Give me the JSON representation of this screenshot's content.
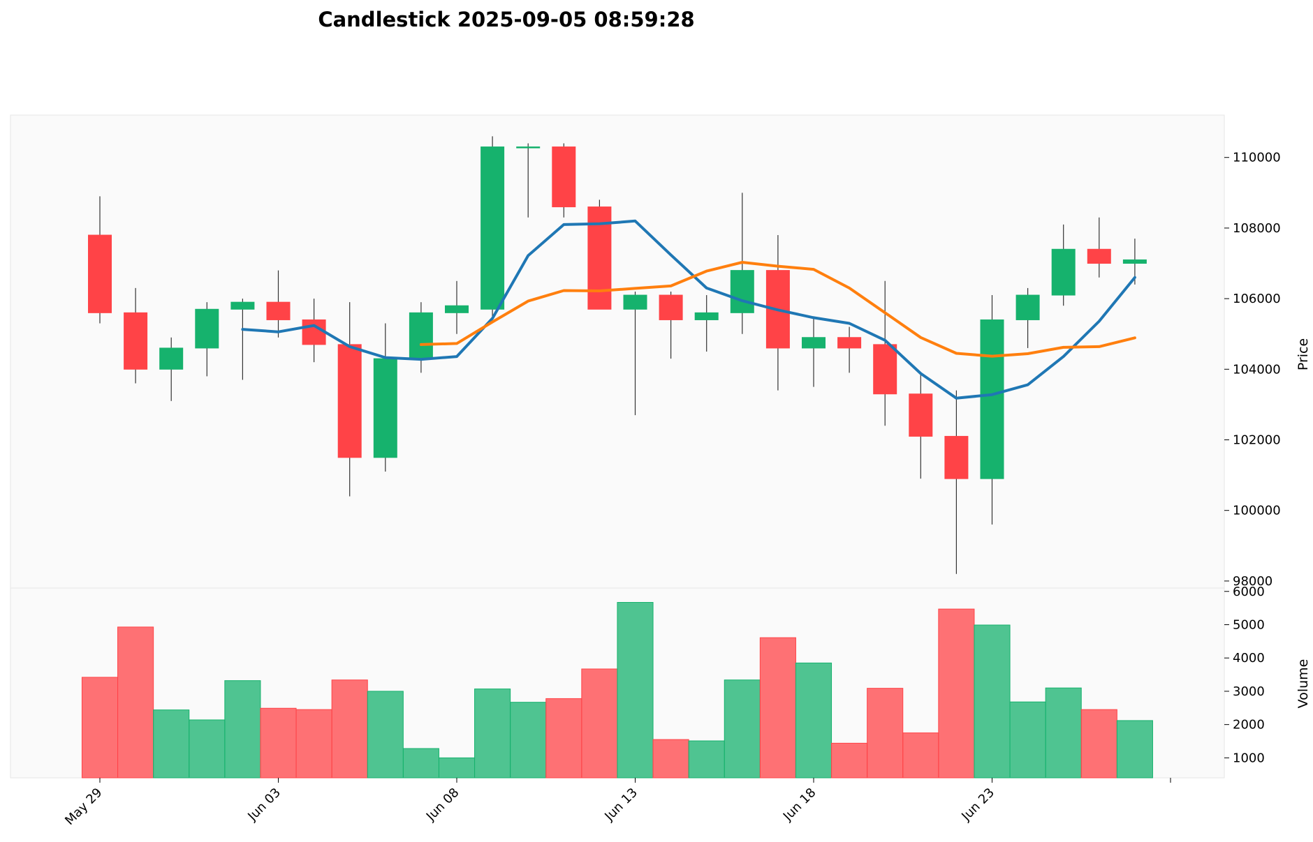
{
  "chart_data": {
    "type": "candlestick",
    "title": "Candlestick 2025-09-05 08:59:28",
    "price_ylabel": "Price",
    "volume_ylabel": "Volume",
    "price_ylim": [
      97800,
      111200
    ],
    "volume_ylim": [
      400,
      6100
    ],
    "price_ticks": [
      98000,
      100000,
      102000,
      104000,
      106000,
      108000,
      110000
    ],
    "volume_ticks": [
      1000,
      2000,
      3000,
      4000,
      5000,
      6000
    ],
    "x_tick_labels": [
      {
        "index": 0,
        "label": "May 29"
      },
      {
        "index": 5,
        "label": "Jun 03"
      },
      {
        "index": 10,
        "label": "Jun 08"
      },
      {
        "index": 15,
        "label": "Jun 13"
      },
      {
        "index": 20,
        "label": "Jun 18"
      },
      {
        "index": 25,
        "label": "Jun 23"
      },
      {
        "index": 30,
        "label": ""
      }
    ],
    "up_color": "#16b26d",
    "down_color": "#ff4347",
    "ma_colors": [
      "#1f77b4",
      "#ff7f0e"
    ],
    "candles": [
      {
        "date": "2025-05-29",
        "open": 107800,
        "high": 108900,
        "low": 105300,
        "close": 105600,
        "volume": 3420
      },
      {
        "date": "2025-05-30",
        "open": 105600,
        "high": 106300,
        "low": 103600,
        "close": 104000,
        "volume": 4930
      },
      {
        "date": "2025-05-31",
        "open": 104000,
        "high": 104900,
        "low": 103100,
        "close": 104600,
        "volume": 2440
      },
      {
        "date": "2025-06-01",
        "open": 104600,
        "high": 105900,
        "low": 103800,
        "close": 105700,
        "volume": 2140
      },
      {
        "date": "2025-06-02",
        "open": 105700,
        "high": 106000,
        "low": 103700,
        "close": 105900,
        "volume": 3320
      },
      {
        "date": "2025-06-03",
        "open": 105900,
        "high": 106800,
        "low": 104900,
        "close": 105400,
        "volume": 2490
      },
      {
        "date": "2025-06-04",
        "open": 105400,
        "high": 106000,
        "low": 104200,
        "close": 104700,
        "volume": 2450
      },
      {
        "date": "2025-06-05",
        "open": 104700,
        "high": 105900,
        "low": 100400,
        "close": 101500,
        "volume": 3340
      },
      {
        "date": "2025-06-06",
        "open": 101500,
        "high": 105300,
        "low": 101100,
        "close": 104300,
        "volume": 3000
      },
      {
        "date": "2025-06-07",
        "open": 104300,
        "high": 105900,
        "low": 103900,
        "close": 105600,
        "volume": 1280
      },
      {
        "date": "2025-06-08",
        "open": 105600,
        "high": 106500,
        "low": 105000,
        "close": 105800,
        "volume": 1000
      },
      {
        "date": "2025-06-09",
        "open": 105700,
        "high": 110600,
        "low": 105500,
        "close": 110300,
        "volume": 3070
      },
      {
        "date": "2025-06-10",
        "open": 110300,
        "high": 110400,
        "low": 108300,
        "close": 110300,
        "volume": 2670
      },
      {
        "date": "2025-06-11",
        "open": 110300,
        "high": 110400,
        "low": 108300,
        "close": 108600,
        "volume": 2780
      },
      {
        "date": "2025-06-12",
        "open": 108600,
        "high": 108800,
        "low": 105700,
        "close": 105700,
        "volume": 3670
      },
      {
        "date": "2025-06-13",
        "open": 105700,
        "high": 106200,
        "low": 102700,
        "close": 106100,
        "volume": 5670
      },
      {
        "date": "2025-06-14",
        "open": 106100,
        "high": 106200,
        "low": 104300,
        "close": 105400,
        "volume": 1550
      },
      {
        "date": "2025-06-15",
        "open": 105400,
        "high": 106100,
        "low": 104500,
        "close": 105600,
        "volume": 1510
      },
      {
        "date": "2025-06-16",
        "open": 105600,
        "high": 109000,
        "low": 105000,
        "close": 106800,
        "volume": 3340
      },
      {
        "date": "2025-06-17",
        "open": 106800,
        "high": 107800,
        "low": 103400,
        "close": 104600,
        "volume": 4610
      },
      {
        "date": "2025-06-18",
        "open": 104600,
        "high": 105500,
        "low": 103500,
        "close": 104900,
        "volume": 3850
      },
      {
        "date": "2025-06-19",
        "open": 104900,
        "high": 105200,
        "low": 103900,
        "close": 104600,
        "volume": 1440
      },
      {
        "date": "2025-06-20",
        "open": 104700,
        "high": 106500,
        "low": 102400,
        "close": 103300,
        "volume": 3090
      },
      {
        "date": "2025-06-21",
        "open": 103300,
        "high": 103900,
        "low": 100900,
        "close": 102100,
        "volume": 1750
      },
      {
        "date": "2025-06-22",
        "open": 102100,
        "high": 103400,
        "low": 98200,
        "close": 100900,
        "volume": 5470
      },
      {
        "date": "2025-06-23",
        "open": 100900,
        "high": 106100,
        "low": 99600,
        "close": 105400,
        "volume": 4990
      },
      {
        "date": "2025-06-24",
        "open": 105400,
        "high": 106300,
        "low": 104600,
        "close": 106100,
        "volume": 2680
      },
      {
        "date": "2025-06-25",
        "open": 106100,
        "high": 108100,
        "low": 105800,
        "close": 107400,
        "volume": 3100
      },
      {
        "date": "2025-06-26",
        "open": 107400,
        "high": 108300,
        "low": 106600,
        "close": 107000,
        "volume": 2450
      },
      {
        "date": "2025-06-27",
        "open": 107000,
        "high": 107700,
        "low": 106400,
        "close": 107100,
        "volume": 2120
      }
    ],
    "moving_averages": [
      {
        "values": [
          null,
          null,
          null,
          null,
          105130,
          105060,
          105240,
          104640,
          104330,
          104280,
          104360,
          105440,
          107220,
          108100,
          108120,
          108200,
          107240,
          106300,
          105940,
          105680,
          105460,
          105300,
          104820,
          103880,
          103180,
          103280,
          103560,
          104360,
          105360,
          106600
        ]
      },
      {
        "values": [
          null,
          null,
          null,
          null,
          null,
          null,
          null,
          null,
          null,
          104700,
          104730,
          105340,
          105930,
          106230,
          106220,
          106290,
          106360,
          106780,
          107030,
          106920,
          106830,
          106300,
          105600,
          104900,
          104450,
          104370,
          104440,
          104620,
          104640,
          104890
        ]
      }
    ]
  }
}
